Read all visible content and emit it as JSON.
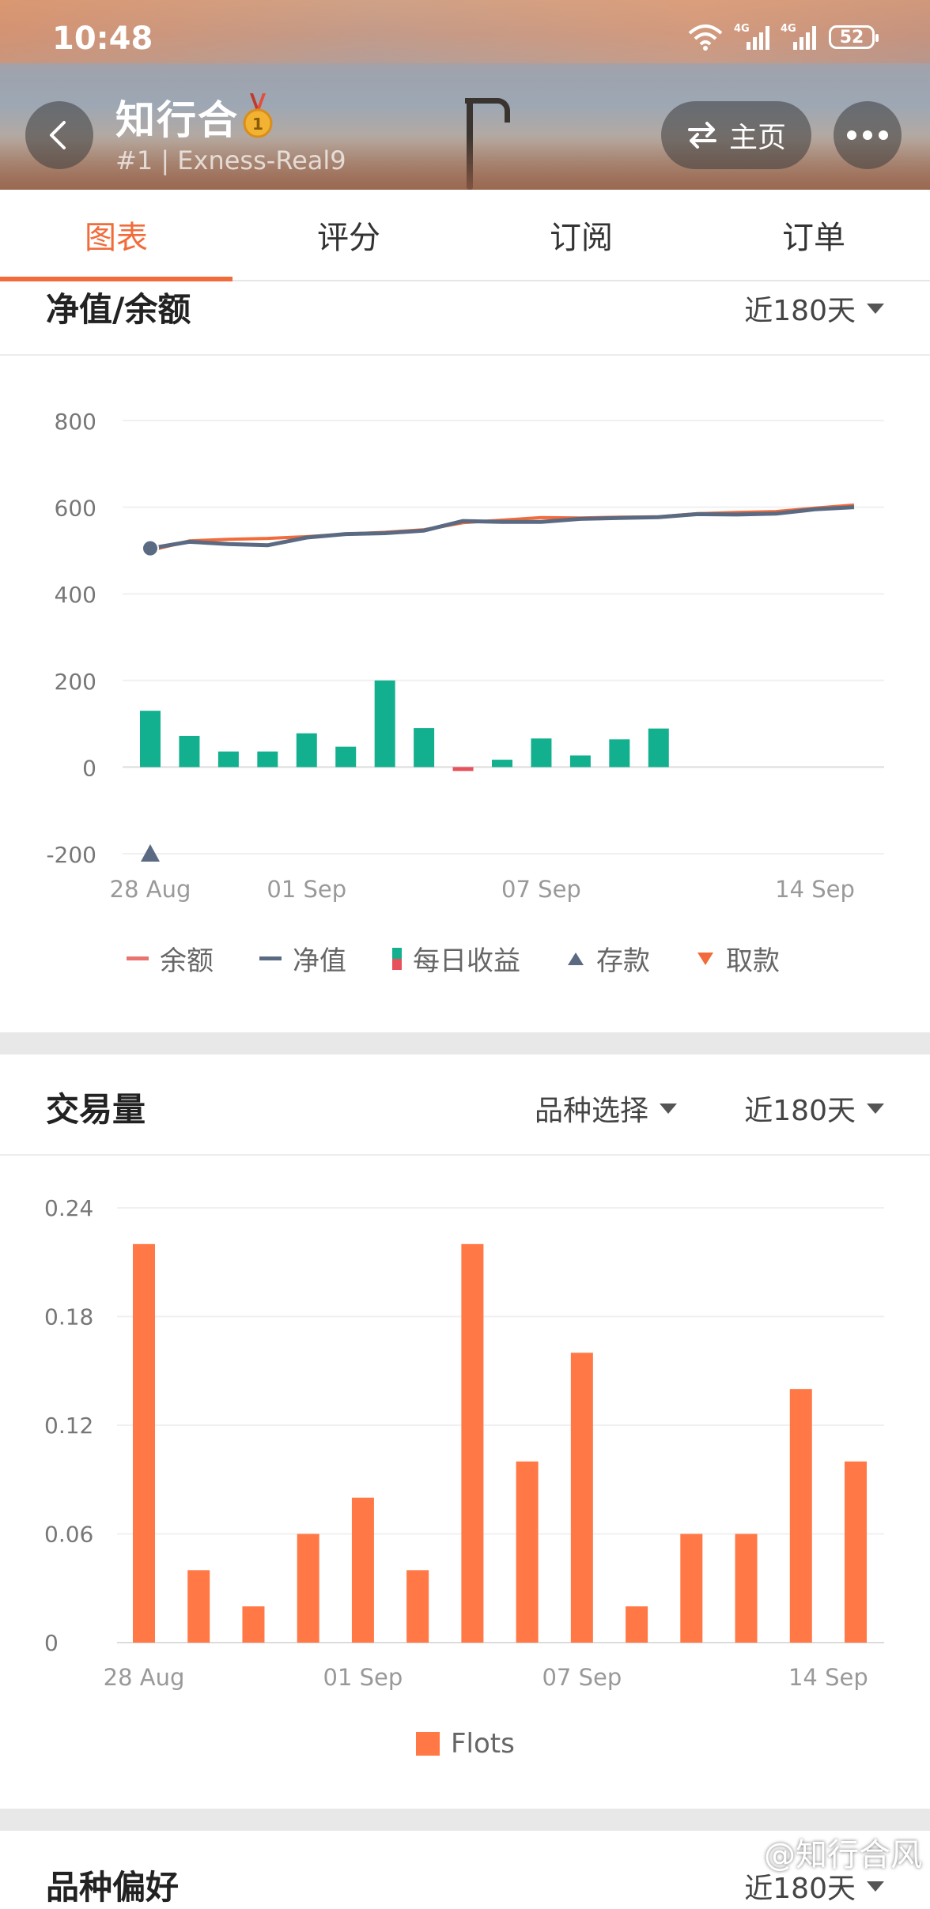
{
  "status_bar": {
    "time": "10:48",
    "net1": "4G",
    "net2": "4G",
    "battery": "52"
  },
  "header": {
    "name": "知行合",
    "sub": "#1 | Exness-Real9",
    "home_label": "主页"
  },
  "tabs": [
    {
      "label": "图表",
      "active": true
    },
    {
      "label": "评分",
      "active": false
    },
    {
      "label": "订阅",
      "active": false
    },
    {
      "label": "订单",
      "active": false
    }
  ],
  "equity_section": {
    "title": "净值/余额",
    "range_select": "近180天",
    "legend": [
      {
        "label": "余额",
        "color": "#e8736f"
      },
      {
        "label": "净值",
        "color": "#5a6a83"
      },
      {
        "label": "每日收益",
        "color": "#13b08f"
      },
      {
        "label": "存款",
        "color": "#5a6a83"
      },
      {
        "label": "取款",
        "color": "#f26b3a"
      }
    ]
  },
  "volume_section": {
    "title": "交易量",
    "symbol_select": "品种选择",
    "range_select": "近180天",
    "legend": [
      {
        "label": "Flots",
        "color": "#ff7846"
      }
    ]
  },
  "preference_section": {
    "title": "品种偏好",
    "range_select": "近180天"
  },
  "watermark": "@知行合风",
  "chart_data": [
    {
      "type": "line",
      "ylim": [
        -200,
        800
      ],
      "yticks": [
        800,
        600,
        400,
        200,
        0,
        -200
      ],
      "xticks": [
        "28 Aug",
        "01 Sep",
        "07 Sep",
        "14 Sep"
      ],
      "x": [
        "28 Aug",
        "29 Aug",
        "30 Aug",
        "31 Aug",
        "01 Sep",
        "02 Sep",
        "03 Sep",
        "04 Sep",
        "05 Sep",
        "06 Sep",
        "07 Sep",
        "08 Sep",
        "09 Sep",
        "10 Sep",
        "11 Sep",
        "12 Sep",
        "13 Sep",
        "14 Sep",
        "15 Sep"
      ],
      "series": [
        {
          "name": "余额",
          "color": "#f26b3a",
          "values": [
            500,
            522,
            526,
            528,
            532,
            538,
            542,
            548,
            564,
            570,
            576,
            575,
            577,
            578,
            585,
            588,
            590,
            598,
            605
          ]
        },
        {
          "name": "净值",
          "color": "#5a6a83",
          "values": [
            505,
            520,
            515,
            512,
            530,
            538,
            540,
            546,
            568,
            566,
            566,
            573,
            575,
            577,
            584,
            583,
            585,
            595,
            600
          ]
        }
      ],
      "bars": {
        "name": "每日收益",
        "x": [
          "28 Aug",
          "29 Aug",
          "30 Aug",
          "31 Aug",
          "01 Sep",
          "02 Sep",
          "03 Sep",
          "04 Sep",
          "05 Sep",
          "06 Sep",
          "07 Sep",
          "08 Sep",
          "09 Sep",
          "10 Sep",
          "11 Sep"
        ],
        "values": [
          130,
          72,
          36,
          36,
          78,
          47,
          200,
          90,
          -9,
          17,
          66,
          27,
          64,
          89,
          0
        ],
        "positive_color": "#13b08f",
        "negative_color": "#e8505b"
      },
      "deposit": {
        "x": "28 Aug",
        "value": 505
      },
      "deposit_marker": {
        "x": "28 Aug",
        "value": -200
      }
    },
    {
      "type": "bar",
      "ylim": [
        0,
        0.24
      ],
      "yticks": [
        "0.24",
        "0.18",
        "0.12",
        "0.06",
        "0"
      ],
      "xticks": [
        "28 Aug",
        "01 Sep",
        "07 Sep",
        "14 Sep"
      ],
      "series": [
        {
          "name": "Flots",
          "color": "#ff7846",
          "values": [
            0.22,
            0.04,
            0.02,
            0.06,
            0.08,
            0.04,
            0.22,
            0.1,
            0.16,
            0.02,
            0.06,
            0.06,
            0.14,
            0.1
          ]
        }
      ]
    }
  ]
}
